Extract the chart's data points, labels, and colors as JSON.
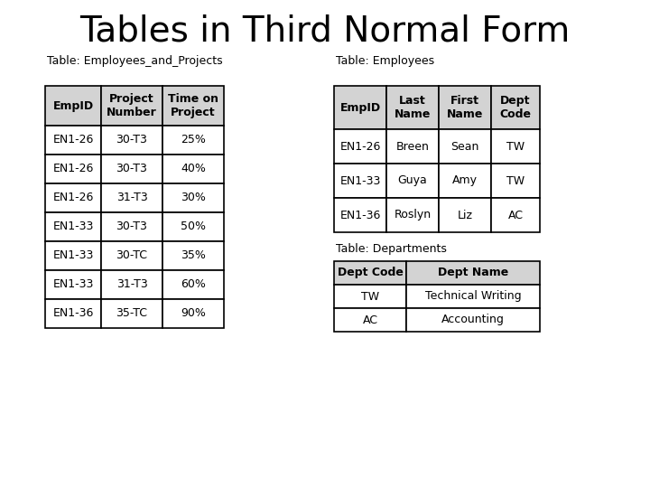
{
  "title": "Tables in Third Normal Form",
  "title_fontsize": 28,
  "table1_label": "Table: Employees_and_Projects",
  "table2_label": "Table: Employees",
  "table3_label": "Table: Departments",
  "table1_headers": [
    "EmpID",
    "Project\nNumber",
    "Time on\nProject"
  ],
  "table1_rows": [
    [
      "EN1-26",
      "30-T3",
      "25%"
    ],
    [
      "EN1-26",
      "30-T3",
      "40%"
    ],
    [
      "EN1-26",
      "31-T3",
      "30%"
    ],
    [
      "EN1-33",
      "30-T3",
      "50%"
    ],
    [
      "EN1-33",
      "30-TC",
      "35%"
    ],
    [
      "EN1-33",
      "31-T3",
      "60%"
    ],
    [
      "EN1-36",
      "35-TC",
      "90%"
    ]
  ],
  "table2_headers": [
    "EmpID",
    "Last\nName",
    "First\nName",
    "Dept\nCode"
  ],
  "table2_rows": [
    [
      "EN1-26",
      "Breen",
      "Sean",
      "TW"
    ],
    [
      "EN1-33",
      "Guya",
      "Amy",
      "TW"
    ],
    [
      "EN1-36",
      "Roslyn",
      "Liz",
      "AC"
    ]
  ],
  "table3_headers": [
    "Dept Code",
    "Dept Name"
  ],
  "table3_rows": [
    [
      "TW",
      "Technical Writing"
    ],
    [
      "AC",
      "Accounting"
    ]
  ],
  "header_bg": "#d3d3d3",
  "row_bg": "#ffffff",
  "border_color": "#000000",
  "label_fontsize": 9,
  "cell_fontsize": 9,
  "header_fontsize": 9,
  "bg_color": "#ffffff"
}
